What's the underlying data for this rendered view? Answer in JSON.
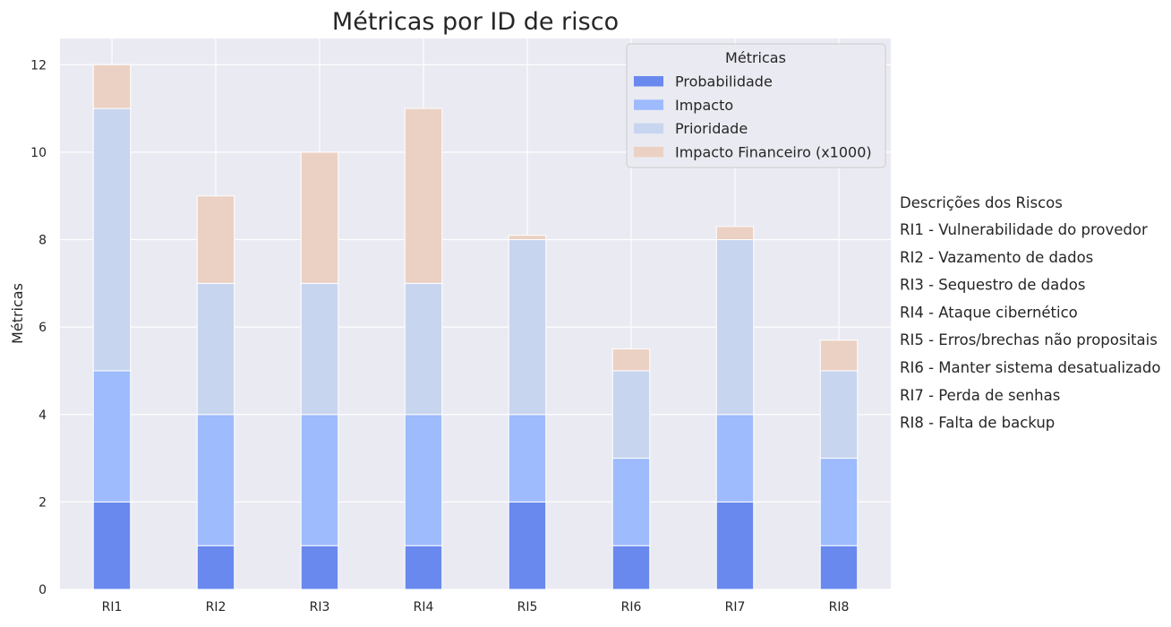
{
  "chart_data": {
    "type": "bar",
    "stacked": true,
    "title": "Métricas por ID de risco",
    "xlabel": "",
    "ylabel": "Métricas",
    "ylim": [
      0,
      12.6
    ],
    "yticks": [
      0,
      2,
      4,
      6,
      8,
      10,
      12
    ],
    "grid": true,
    "categories": [
      "RI1",
      "RI2",
      "RI3",
      "RI4",
      "RI5",
      "RI6",
      "RI7",
      "RI8"
    ],
    "series": [
      {
        "name": "Probabilidade",
        "color": "#6a89ee",
        "values": [
          2,
          1,
          1,
          1,
          2,
          1,
          2,
          1
        ]
      },
      {
        "name": "Impacto",
        "color": "#9dbbfd",
        "values": [
          3,
          3,
          3,
          3,
          2,
          2,
          2,
          2
        ]
      },
      {
        "name": "Prioridade",
        "color": "#c8d5ee",
        "values": [
          6,
          3,
          3,
          3,
          4,
          2,
          4,
          2
        ]
      },
      {
        "name": "Impacto Financeiro (x1000)",
        "color": "#ebd1c3",
        "values": [
          1,
          2,
          3,
          4,
          0.1,
          0.5,
          0.3,
          0.7
        ]
      }
    ],
    "legend": {
      "title": "Métricas",
      "placement": "top-right"
    },
    "descriptions": {
      "title": "Descrições dos Riscos",
      "items": [
        "RI1 - Vulnerabilidade do provedor",
        "RI2 - Vazamento de dados",
        "RI3 - Sequestro de dados",
        "RI4 - Ataque cibernético",
        "RI5 - Erros/brechas não propositais",
        "RI6 - Manter sistema desatualizado",
        "RI7 - Perda de senhas",
        "RI8 - Falta de backup"
      ]
    },
    "colors": {
      "plot_background": "#eaeaf2",
      "grid": "#ffffff",
      "text": "#262626"
    }
  }
}
